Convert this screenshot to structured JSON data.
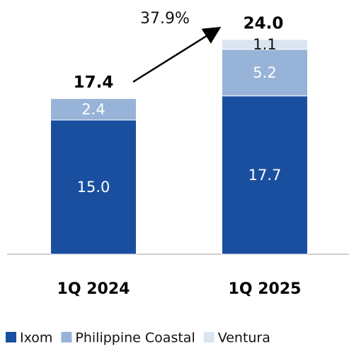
{
  "chart_data": {
    "type": "stacked_bar",
    "categories": [
      "1Q 2024",
      "1Q 2025"
    ],
    "series": [
      {
        "name": "Ixom",
        "color": "#1a4fa0",
        "values": [
          15.0,
          17.7
        ],
        "value_labels": [
          "15.0",
          "17.7"
        ],
        "label_color": "#ffffff"
      },
      {
        "name": "Philippine Coastal",
        "color": "#97b3d8",
        "values": [
          2.4,
          5.2
        ],
        "value_labels": [
          "2.4",
          "5.2"
        ],
        "label_color": "#ffffff"
      },
      {
        "name": "Ventura",
        "color": "#dbe5f1",
        "values": [
          null,
          1.1
        ],
        "value_labels": [
          null,
          "1.1"
        ],
        "label_color": "#111111"
      }
    ],
    "totals": [
      17.4,
      24.0
    ],
    "total_labels": [
      "17.4",
      "24.0"
    ],
    "annotation": "37.9%",
    "ylim": [
      0,
      24
    ]
  }
}
